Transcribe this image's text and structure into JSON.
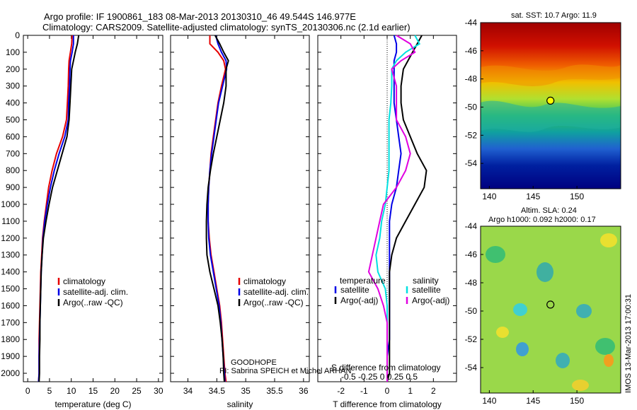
{
  "header": {
    "line1": "Argo profile: IF 1900861_183 08-Mar-2013 20130310_46 49.544S 146.977E",
    "line2": "Climatology: CARS2009. Satellite-adjusted climatology: synTS_20130306.nc (2.1d earlier)"
  },
  "colors": {
    "climatology": "#e60000",
    "satellite": "#0000e6",
    "argo": "#000000",
    "sal_satellite": "#00e0e0",
    "sal_argo": "#e000e0"
  },
  "chart_data": [
    {
      "type": "line",
      "panel": "temperature",
      "xlabel": "temperature (deg C)",
      "xlim": [
        -1,
        31
      ],
      "xticks": [
        0,
        5,
        10,
        15,
        20,
        25,
        30
      ],
      "ylim": [
        2050,
        0
      ],
      "yticks": [
        0,
        100,
        200,
        300,
        400,
        500,
        600,
        700,
        800,
        900,
        1000,
        1100,
        1200,
        1300,
        1400,
        1500,
        1600,
        1700,
        1800,
        1900,
        2000
      ],
      "depth": [
        0,
        50,
        100,
        150,
        200,
        300,
        400,
        500,
        600,
        700,
        800,
        900,
        1000,
        1100,
        1200,
        1300,
        1400,
        1500,
        1600,
        1700,
        1800,
        1900,
        2000,
        2050
      ],
      "legend": [
        "climatology",
        "satellite-adj. clim.",
        "Argo(..raw -QC)"
      ],
      "series": [
        {
          "name": "climatology",
          "x": [
            10.2,
            10.1,
            9.8,
            9.5,
            9.4,
            9.3,
            9.1,
            8.9,
            8.0,
            6.6,
            5.6,
            4.8,
            4.3,
            3.8,
            3.4,
            3.2,
            3.0,
            2.9,
            2.8,
            2.7,
            2.6,
            2.6,
            2.6,
            2.5
          ]
        },
        {
          "name": "satellite-adj. clim.",
          "x": [
            10.5,
            10.5,
            10.2,
            9.8,
            9.7,
            9.6,
            9.4,
            9.3,
            8.5,
            7.2,
            6.1,
            5.2,
            4.5,
            3.9,
            3.5,
            3.3,
            3.1,
            3.0,
            2.9,
            2.8,
            2.7,
            2.6,
            2.6,
            2.5
          ]
        },
        {
          "name": "Argo(..raw -QC)",
          "x": [
            11.7,
            11.4,
            10.9,
            10.5,
            10.1,
            9.9,
            9.7,
            9.5,
            9.0,
            7.9,
            6.8,
            5.7,
            4.9,
            4.2,
            3.6,
            3.3,
            3.1,
            3.0,
            2.9,
            2.8,
            2.8,
            2.7,
            2.7,
            2.6
          ]
        }
      ]
    },
    {
      "type": "line",
      "panel": "salinity",
      "xlabel": "salinity",
      "xlim": [
        33.7,
        36.1
      ],
      "xticks": [
        34,
        34.5,
        35,
        35.5,
        36
      ],
      "ylim": [
        2050,
        0
      ],
      "depth": [
        0,
        50,
        100,
        150,
        200,
        300,
        400,
        500,
        600,
        700,
        800,
        900,
        1000,
        1100,
        1200,
        1300,
        1400,
        1500,
        1600,
        1700,
        1800,
        1900,
        2000,
        2050
      ],
      "legend": [
        "climatology",
        "satellite-adj. clim.",
        "Argo(..raw -QC)"
      ],
      "series": [
        {
          "name": "climatology",
          "x": [
            34.38,
            34.38,
            34.52,
            34.62,
            34.65,
            34.58,
            34.52,
            34.48,
            34.44,
            34.4,
            34.38,
            34.36,
            34.35,
            34.35,
            34.37,
            34.4,
            34.45,
            34.5,
            34.55,
            34.58,
            34.6,
            34.62,
            34.64,
            34.66
          ]
        },
        {
          "name": "satellite-adj. clim.",
          "x": [
            34.48,
            34.52,
            34.58,
            34.66,
            34.67,
            34.6,
            34.53,
            34.49,
            34.45,
            34.41,
            34.38,
            34.36,
            34.35,
            34.35,
            34.36,
            34.39,
            34.44,
            34.49,
            34.54,
            34.57,
            34.59,
            34.61,
            34.63,
            34.64
          ]
        },
        {
          "name": "Argo(..raw -QC)",
          "x": [
            34.47,
            34.55,
            34.62,
            34.7,
            34.66,
            34.66,
            34.62,
            34.56,
            34.5,
            34.44,
            34.39,
            34.35,
            34.33,
            34.32,
            34.32,
            34.33,
            34.38,
            34.45,
            34.52,
            34.56,
            34.59,
            34.61,
            34.62,
            34.63
          ]
        }
      ]
    },
    {
      "type": "line",
      "panel": "difference",
      "xlabel": "T difference from climatology",
      "xlim": [
        -3,
        3
      ],
      "xticks": [
        -2,
        -1,
        0,
        1,
        2
      ],
      "top_label": "S difference from climatology",
      "top_ticks_text": "-0.5 -0.25 0 0.25 0.5",
      "ylim": [
        2050,
        0
      ],
      "depth": [
        0,
        50,
        100,
        150,
        200,
        300,
        400,
        500,
        600,
        700,
        800,
        900,
        1000,
        1100,
        1200,
        1300,
        1400,
        1500,
        1600,
        1700,
        1800,
        1900,
        2000,
        2050
      ],
      "legend_temperature": {
        "title": "temperature",
        "items": [
          "satellite",
          "Argo(-adj)"
        ]
      },
      "legend_salinity": {
        "title": "salinity",
        "items": [
          "satellite",
          "Argo(-adj)"
        ]
      },
      "series": [
        {
          "name": "satellite",
          "group": "temperature",
          "x": [
            0.3,
            0.4,
            0.4,
            0.3,
            0.3,
            0.3,
            0.3,
            0.4,
            0.5,
            0.6,
            0.5,
            0.4,
            0.2,
            0.1,
            0.1,
            0.1,
            0.1,
            0.1,
            0.1,
            0.1,
            0.1,
            0.0,
            0.0,
            0.0
          ]
        },
        {
          "name": "Argo(-adj)",
          "group": "temperature",
          "x": [
            1.5,
            1.3,
            1.1,
            0.9,
            0.7,
            0.6,
            0.6,
            0.7,
            1.0,
            1.3,
            1.7,
            1.6,
            1.2,
            0.8,
            0.4,
            0.2,
            0.1,
            0.1,
            0.1,
            0.1,
            0.1,
            0.1,
            0.1,
            0.0
          ]
        },
        {
          "name": "satellite",
          "group": "salinity",
          "x": [
            0.6,
            0.7,
            0.4,
            0.2,
            0.1,
            0.1,
            0.08,
            0.04,
            0.04,
            0.04,
            0.04,
            0.0,
            -0.04,
            -0.12,
            -0.16,
            -0.24,
            -0.2,
            -0.04,
            0.0,
            0.0,
            0.0,
            0.0,
            0.0,
            0.0
          ]
        },
        {
          "name": "Argo(-adj)",
          "group": "salinity",
          "x": [
            0.2,
            0.5,
            0.6,
            0.3,
            0.1,
            0.2,
            0.2,
            0.2,
            0.4,
            0.5,
            0.4,
            0.2,
            -0.08,
            -0.16,
            -0.24,
            -0.32,
            -0.4,
            -0.2,
            -0.08,
            0.0,
            0.0,
            0.0,
            0.0,
            0.0
          ]
        }
      ]
    }
  ],
  "info": {
    "line1": "GOODHOPE",
    "line2": "PI: Sabrina SPEICH et Michel ARHAN"
  },
  "maps": [
    {
      "panel": "sst",
      "title": "sat. SST: 10.7 Argo: 11.9",
      "xlim": [
        139,
        155
      ],
      "ylim": [
        -55.8,
        -44
      ],
      "xticks": [
        140,
        145,
        150
      ],
      "yticks": [
        -44,
        -46,
        -48,
        -50,
        -52,
        -54
      ],
      "float": {
        "lon": 146.977,
        "lat": -49.544
      }
    },
    {
      "panel": "sla",
      "title1": "Altim. SLA: 0.24",
      "title2": "Argo h1000: 0.092 h2000: 0.17",
      "xlim": [
        139,
        155
      ],
      "ylim": [
        -55.8,
        -44
      ],
      "xticks": [
        140,
        145,
        150
      ],
      "yticks": [
        -44,
        -46,
        -48,
        -50,
        -52,
        -54
      ],
      "float": {
        "lon": 146.977,
        "lat": -49.544
      }
    }
  ],
  "side_label": "IMOS 13-Mar-2013 17:00:31"
}
